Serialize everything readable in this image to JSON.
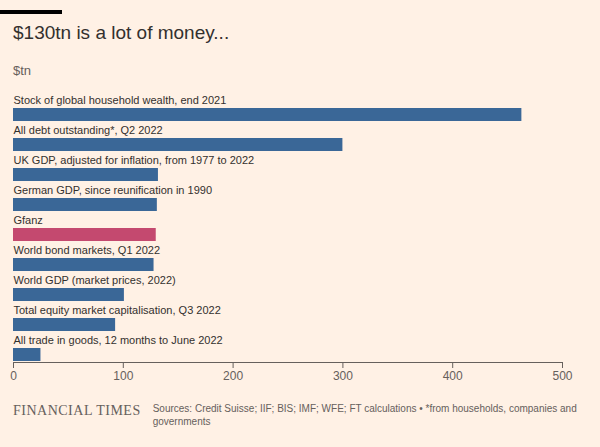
{
  "chart_data": {
    "type": "bar",
    "orientation": "horizontal",
    "title": "$130tn is a lot of money...",
    "subtitle": "$tn",
    "brand": "FINANCIAL TIMES",
    "source": "Sources: Credit Suisse; IIF; BIS; IMF; WFE; FT calculations • *from households, companies and governments",
    "categories": [
      "Stock of global household wealth, end 2021",
      "All debt outstanding*, Q2 2022",
      "UK GDP, adjusted for inflation, from 1977 to 2022",
      "German GDP, since reunification in 1990",
      "Gfanz",
      "World bond markets, Q1 2022",
      "World GDP (market prices, 2022)",
      "Total equity market capitalisation, Q3 2022",
      "All trade in goods, 12 months to June 2022"
    ],
    "values": [
      463,
      300,
      132,
      131,
      130,
      128,
      101,
      93,
      25
    ],
    "colors": [
      "#3a6797",
      "#3a6797",
      "#3a6797",
      "#3a6797",
      "#c4496f",
      "#3a6797",
      "#3a6797",
      "#3a6797",
      "#3a6797"
    ],
    "xlim": [
      0,
      500
    ],
    "xticks": [
      0,
      100,
      200,
      300,
      400,
      500
    ],
    "grid": false
  }
}
